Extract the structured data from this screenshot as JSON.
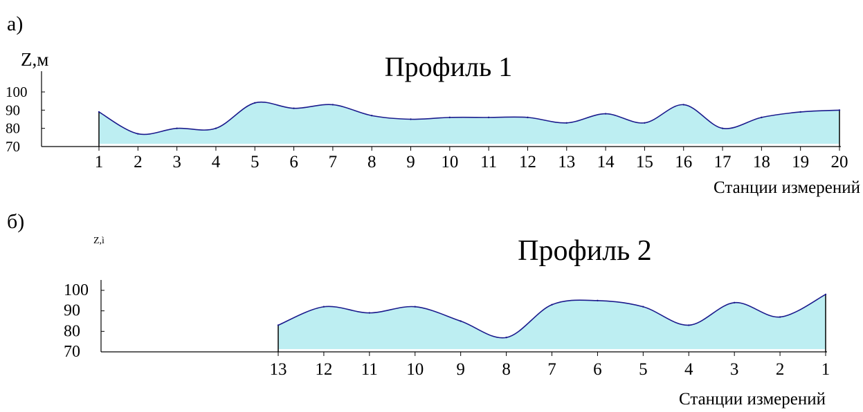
{
  "panels": [
    "а)",
    "б)"
  ],
  "chart_data": [
    {
      "type": "area",
      "title": "Профиль 1",
      "ylabel": "Z,м",
      "xlabel": "Станции измерений",
      "x": [
        "1",
        "2",
        "3",
        "4",
        "5",
        "6",
        "7",
        "8",
        "9",
        "10",
        "11",
        "12",
        "13",
        "14",
        "15",
        "16",
        "17",
        "18",
        "19",
        "20"
      ],
      "values": [
        89,
        77,
        80,
        80,
        94,
        91,
        93,
        87,
        85,
        86,
        86,
        86,
        83,
        88,
        83,
        93,
        80,
        86,
        89,
        90
      ],
      "yticks": [
        "100",
        "90",
        "80",
        "70"
      ],
      "ylim": [
        70,
        100
      ],
      "colors": {
        "line": "#1a1a8c",
        "fill": "#bdeef2"
      }
    },
    {
      "type": "area",
      "title": "Профиль 2",
      "ylabel": "Z,ì",
      "xlabel": "Станции измерений",
      "x": [
        "13",
        "12",
        "11",
        "10",
        "9",
        "8",
        "7",
        "6",
        "5",
        "4",
        "3",
        "2",
        "1"
      ],
      "values": [
        83,
        92,
        89,
        92,
        85,
        77,
        93,
        95,
        92,
        83,
        94,
        87,
        98
      ],
      "yticks": [
        "100",
        "90",
        "80",
        "70"
      ],
      "ylim": [
        70,
        100
      ],
      "colors": {
        "line": "#1a1a8c",
        "fill": "#bdeef2"
      }
    }
  ]
}
